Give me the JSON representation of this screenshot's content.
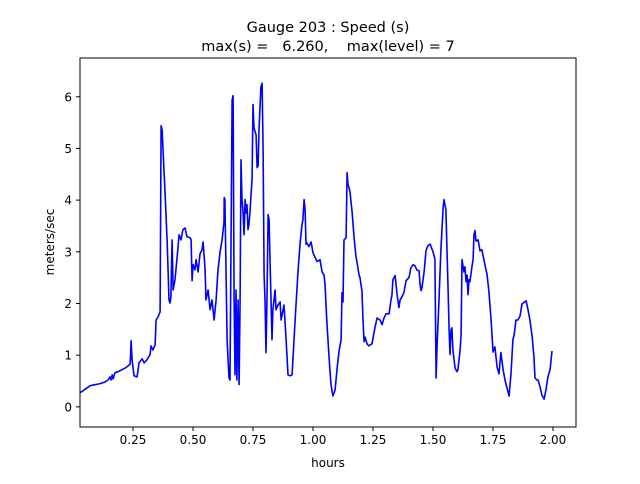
{
  "chart_data": {
    "type": "line",
    "title": "Gauge 203 : Speed (s)",
    "subtitle": "max(s) =   6.260,    max(level) = 7",
    "xlabel": "hours",
    "ylabel": "meters/sec",
    "xlim": [
      0.029,
      2.096
    ],
    "ylim": [
      -0.39,
      6.75
    ],
    "xticks": [
      0.25,
      0.5,
      0.75,
      1.0,
      1.25,
      1.5,
      1.75,
      2.0
    ],
    "xtick_labels": [
      "0.25",
      "0.50",
      "0.75",
      "1.00",
      "1.25",
      "1.50",
      "1.75",
      "2.00"
    ],
    "yticks": [
      0,
      1,
      2,
      3,
      4,
      5,
      6
    ],
    "ytick_labels": [
      "0",
      "1",
      "2",
      "3",
      "4",
      "5",
      "6"
    ],
    "grid": false,
    "series": [
      {
        "name": "speed",
        "color": "#0000ff",
        "points": [
          [
            0.029,
            0.27
          ],
          [
            0.071,
            0.41
          ],
          [
            0.113,
            0.45
          ],
          [
            0.133,
            0.48
          ],
          [
            0.146,
            0.52
          ],
          [
            0.154,
            0.58
          ],
          [
            0.158,
            0.52
          ],
          [
            0.163,
            0.62
          ],
          [
            0.167,
            0.54
          ],
          [
            0.175,
            0.66
          ],
          [
            0.196,
            0.7
          ],
          [
            0.217,
            0.75
          ],
          [
            0.229,
            0.79
          ],
          [
            0.238,
            0.83
          ],
          [
            0.242,
            1.28
          ],
          [
            0.246,
            0.91
          ],
          [
            0.254,
            0.6
          ],
          [
            0.267,
            0.58
          ],
          [
            0.275,
            0.85
          ],
          [
            0.288,
            0.93
          ],
          [
            0.296,
            0.85
          ],
          [
            0.308,
            0.91
          ],
          [
            0.321,
            1.01
          ],
          [
            0.325,
            1.18
          ],
          [
            0.333,
            1.1
          ],
          [
            0.342,
            1.2
          ],
          [
            0.346,
            1.68
          ],
          [
            0.354,
            1.74
          ],
          [
            0.363,
            1.84
          ],
          [
            0.367,
            5.44
          ],
          [
            0.371,
            5.36
          ],
          [
            0.383,
            4.2
          ],
          [
            0.392,
            3.23
          ],
          [
            0.4,
            2.07
          ],
          [
            0.404,
            2.01
          ],
          [
            0.408,
            2.13
          ],
          [
            0.413,
            3.23
          ],
          [
            0.417,
            2.26
          ],
          [
            0.425,
            2.46
          ],
          [
            0.433,
            2.85
          ],
          [
            0.442,
            3.33
          ],
          [
            0.45,
            3.23
          ],
          [
            0.458,
            3.43
          ],
          [
            0.467,
            3.46
          ],
          [
            0.475,
            3.29
          ],
          [
            0.488,
            3.27
          ],
          [
            0.492,
            3.23
          ],
          [
            0.496,
            2.44
          ],
          [
            0.5,
            2.75
          ],
          [
            0.508,
            2.65
          ],
          [
            0.513,
            2.85
          ],
          [
            0.521,
            2.61
          ],
          [
            0.529,
            2.96
          ],
          [
            0.538,
            3.04
          ],
          [
            0.542,
            3.19
          ],
          [
            0.55,
            2.69
          ],
          [
            0.554,
            2.07
          ],
          [
            0.563,
            2.26
          ],
          [
            0.571,
            1.88
          ],
          [
            0.579,
            2.07
          ],
          [
            0.588,
            1.68
          ],
          [
            0.596,
            2.07
          ],
          [
            0.604,
            2.65
          ],
          [
            0.613,
            3.0
          ],
          [
            0.621,
            3.23
          ],
          [
            0.629,
            3.58
          ],
          [
            0.63,
            4.05
          ],
          [
            0.633,
            4.01
          ],
          [
            0.642,
            1.3
          ],
          [
            0.65,
            0.56
          ],
          [
            0.654,
            0.52
          ],
          [
            0.663,
            5.94
          ],
          [
            0.667,
            6.02
          ],
          [
            0.671,
            2.07
          ],
          [
            0.675,
            0.62
          ],
          [
            0.679,
            2.26
          ],
          [
            0.683,
            0.52
          ],
          [
            0.688,
            2.07
          ],
          [
            0.692,
            0.43
          ],
          [
            0.696,
            2.07
          ],
          [
            0.7,
            4.78
          ],
          [
            0.704,
            4.01
          ],
          [
            0.708,
            3.81
          ],
          [
            0.713,
            3.33
          ],
          [
            0.717,
            4.01
          ],
          [
            0.721,
            3.75
          ],
          [
            0.725,
            3.91
          ],
          [
            0.729,
            3.43
          ],
          [
            0.733,
            3.52
          ],
          [
            0.738,
            3.81
          ],
          [
            0.746,
            4.43
          ],
          [
            0.75,
            5.85
          ],
          [
            0.754,
            5.4
          ],
          [
            0.763,
            5.26
          ],
          [
            0.767,
            4.63
          ],
          [
            0.771,
            4.66
          ],
          [
            0.775,
            5.36
          ],
          [
            0.783,
            6.19
          ],
          [
            0.788,
            6.26
          ],
          [
            0.792,
            4.97
          ],
          [
            0.796,
            2.55
          ],
          [
            0.8,
            2.07
          ],
          [
            0.804,
            1.05
          ],
          [
            0.808,
            1.97
          ],
          [
            0.813,
            3.72
          ],
          [
            0.817,
            3.62
          ],
          [
            0.821,
            2.85
          ],
          [
            0.825,
            2.07
          ],
          [
            0.829,
            1.3
          ],
          [
            0.833,
            1.88
          ],
          [
            0.842,
            2.26
          ],
          [
            0.846,
            1.88
          ],
          [
            0.854,
            1.97
          ],
          [
            0.863,
            2.03
          ],
          [
            0.867,
            1.68
          ],
          [
            0.879,
            1.97
          ],
          [
            0.888,
            1.3
          ],
          [
            0.896,
            0.62
          ],
          [
            0.904,
            0.6
          ],
          [
            0.913,
            0.62
          ],
          [
            0.921,
            1.3
          ],
          [
            0.929,
            1.97
          ],
          [
            0.938,
            2.65
          ],
          [
            0.946,
            3.14
          ],
          [
            0.954,
            3.52
          ],
          [
            0.958,
            3.62
          ],
          [
            0.963,
            4.01
          ],
          [
            0.967,
            3.81
          ],
          [
            0.971,
            3.15
          ],
          [
            0.975,
            3.17
          ],
          [
            0.983,
            3.1
          ],
          [
            0.992,
            3.19
          ],
          [
            1.0,
            2.98
          ],
          [
            1.008,
            2.9
          ],
          [
            1.017,
            2.81
          ],
          [
            1.025,
            2.83
          ],
          [
            1.029,
            2.85
          ],
          [
            1.038,
            2.61
          ],
          [
            1.046,
            2.55
          ],
          [
            1.05,
            2.38
          ],
          [
            1.058,
            1.63
          ],
          [
            1.067,
            0.95
          ],
          [
            1.075,
            0.43
          ],
          [
            1.083,
            0.21
          ],
          [
            1.092,
            0.33
          ],
          [
            1.1,
            0.72
          ],
          [
            1.108,
            1.06
          ],
          [
            1.117,
            1.3
          ],
          [
            1.121,
            2.21
          ],
          [
            1.125,
            2.03
          ],
          [
            1.129,
            3.23
          ],
          [
            1.138,
            3.27
          ],
          [
            1.142,
            4.53
          ],
          [
            1.146,
            4.3
          ],
          [
            1.15,
            4.24
          ],
          [
            1.154,
            4.16
          ],
          [
            1.163,
            3.77
          ],
          [
            1.171,
            3.29
          ],
          [
            1.179,
            2.9
          ],
          [
            1.183,
            2.81
          ],
          [
            1.192,
            2.55
          ],
          [
            1.196,
            2.5
          ],
          [
            1.204,
            2.23
          ],
          [
            1.208,
            1.72
          ],
          [
            1.213,
            1.26
          ],
          [
            1.217,
            1.35
          ],
          [
            1.225,
            1.22
          ],
          [
            1.233,
            1.18
          ],
          [
            1.246,
            1.22
          ],
          [
            1.258,
            1.53
          ],
          [
            1.267,
            1.72
          ],
          [
            1.279,
            1.68
          ],
          [
            1.288,
            1.59
          ],
          [
            1.296,
            1.72
          ],
          [
            1.304,
            1.8
          ],
          [
            1.317,
            1.8
          ],
          [
            1.325,
            2.07
          ],
          [
            1.329,
            2.15
          ],
          [
            1.333,
            2.46
          ],
          [
            1.342,
            2.54
          ],
          [
            1.35,
            2.19
          ],
          [
            1.358,
            1.92
          ],
          [
            1.363,
            2.07
          ],
          [
            1.371,
            2.13
          ],
          [
            1.379,
            2.21
          ],
          [
            1.388,
            2.44
          ],
          [
            1.4,
            2.5
          ],
          [
            1.408,
            2.69
          ],
          [
            1.417,
            2.75
          ],
          [
            1.425,
            2.73
          ],
          [
            1.433,
            2.65
          ],
          [
            1.442,
            2.63
          ],
          [
            1.446,
            2.38
          ],
          [
            1.45,
            2.25
          ],
          [
            1.454,
            2.3
          ],
          [
            1.463,
            2.61
          ],
          [
            1.471,
            3.02
          ],
          [
            1.479,
            3.12
          ],
          [
            1.488,
            3.15
          ],
          [
            1.5,
            3.0
          ],
          [
            1.508,
            2.86
          ],
          [
            1.513,
            0.56
          ],
          [
            1.517,
            1.2
          ],
          [
            1.525,
            2.07
          ],
          [
            1.533,
            3.04
          ],
          [
            1.542,
            3.85
          ],
          [
            1.546,
            4.01
          ],
          [
            1.554,
            3.81
          ],
          [
            1.563,
            2.26
          ],
          [
            1.567,
            1.49
          ],
          [
            1.571,
            1.01
          ],
          [
            1.575,
            1.49
          ],
          [
            1.579,
            1.53
          ],
          [
            1.583,
            1.1
          ],
          [
            1.592,
            0.75
          ],
          [
            1.6,
            0.68
          ],
          [
            1.604,
            0.72
          ],
          [
            1.613,
            1.1
          ],
          [
            1.617,
            1.39
          ],
          [
            1.621,
            2.85
          ],
          [
            1.629,
            2.61
          ],
          [
            1.633,
            2.71
          ],
          [
            1.638,
            2.42
          ],
          [
            1.642,
            2.55
          ],
          [
            1.646,
            2.17
          ],
          [
            1.65,
            2.46
          ],
          [
            1.654,
            2.42
          ],
          [
            1.663,
            2.73
          ],
          [
            1.667,
            2.85
          ],
          [
            1.671,
            3.33
          ],
          [
            1.675,
            3.41
          ],
          [
            1.679,
            3.21
          ],
          [
            1.688,
            3.23
          ],
          [
            1.696,
            3.02
          ],
          [
            1.704,
            3.04
          ],
          [
            1.708,
            2.94
          ],
          [
            1.721,
            2.65
          ],
          [
            1.725,
            2.57
          ],
          [
            1.733,
            2.23
          ],
          [
            1.742,
            1.68
          ],
          [
            1.75,
            1.06
          ],
          [
            1.758,
            1.16
          ],
          [
            1.767,
            0.77
          ],
          [
            1.775,
            0.64
          ],
          [
            1.783,
            1.05
          ],
          [
            1.792,
            0.72
          ],
          [
            1.8,
            0.52
          ],
          [
            1.808,
            0.37
          ],
          [
            1.817,
            0.21
          ],
          [
            1.825,
            0.64
          ],
          [
            1.833,
            1.3
          ],
          [
            1.838,
            1.39
          ],
          [
            1.846,
            1.68
          ],
          [
            1.854,
            1.68
          ],
          [
            1.863,
            1.76
          ],
          [
            1.871,
            1.99
          ],
          [
            1.888,
            2.05
          ],
          [
            1.896,
            1.88
          ],
          [
            1.904,
            1.68
          ],
          [
            1.913,
            1.37
          ],
          [
            1.921,
            0.95
          ],
          [
            1.925,
            0.56
          ],
          [
            1.933,
            0.52
          ],
          [
            1.938,
            0.52
          ],
          [
            1.946,
            0.39
          ],
          [
            1.954,
            0.23
          ],
          [
            1.963,
            0.15
          ],
          [
            1.971,
            0.33
          ],
          [
            1.979,
            0.58
          ],
          [
            1.988,
            0.72
          ],
          [
            1.996,
            1.08
          ]
        ]
      }
    ]
  }
}
